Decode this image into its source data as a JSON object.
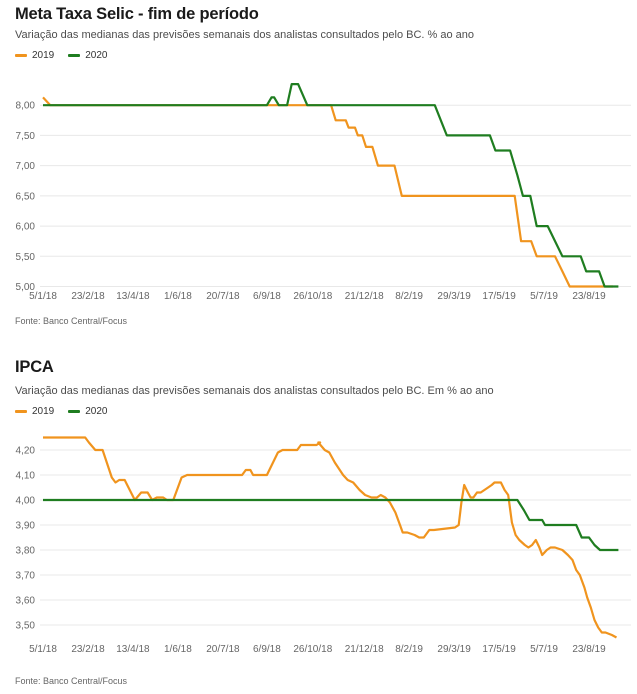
{
  "style": {
    "background": "#ffffff",
    "grid_color": "#e8e8e8",
    "axis_label_color": "#666666",
    "title_color": "#1a1a1a",
    "subtitle_color": "#4d4d4d",
    "source_color": "#666666",
    "orange_2019": "#f0941e",
    "green_2020": "#1f7d20"
  },
  "charts": [
    {
      "subtitle": "Variação das medianas das previsões semanais dos analistas consultados pelo BC. % ao ano",
      "source": "Fonte: Banco Central/Focus",
      "chart_data": {
        "type": "line",
        "title": "Meta Taxa Selic - fim de período",
        "ylabel": "% ao ano",
        "x_unit": "days since 5/1/18 (weekly survey)",
        "xlim": [
          0,
          640
        ],
        "ylim": [
          5.0,
          8.5
        ],
        "grid": true,
        "legend_position": "top-left",
        "x_ticks": [
          {
            "x": 0,
            "label": "5/1/18"
          },
          {
            "x": 49,
            "label": "23/2/18"
          },
          {
            "x": 98,
            "label": "13/4/18"
          },
          {
            "x": 147,
            "label": "1/6/18"
          },
          {
            "x": 196,
            "label": "20/7/18"
          },
          {
            "x": 244,
            "label": "6/9/18"
          },
          {
            "x": 294,
            "label": "26/10/18"
          },
          {
            "x": 350,
            "label": "21/12/18"
          },
          {
            "x": 399,
            "label": "8/2/19"
          },
          {
            "x": 448,
            "label": "29/3/19"
          },
          {
            "x": 497,
            "label": "17/5/19"
          },
          {
            "x": 546,
            "label": "5/7/19"
          },
          {
            "x": 595,
            "label": "23/8/19"
          }
        ],
        "y_ticks": [
          {
            "v": 8.0,
            "label": "8,00"
          },
          {
            "v": 7.5,
            "label": "7,50"
          },
          {
            "v": 7.0,
            "label": "7,00"
          },
          {
            "v": 6.5,
            "label": "6,50"
          },
          {
            "v": 6.0,
            "label": "6,00"
          },
          {
            "v": 5.5,
            "label": "5,50"
          },
          {
            "v": 5.0,
            "label": "5,00"
          }
        ],
        "series": [
          {
            "name": "2019",
            "color": "#f0941e",
            "points": [
              [
                0,
                8.13
              ],
              [
                8,
                8.0
              ],
              [
                314,
                8.0
              ],
              [
                319,
                7.75
              ],
              [
                330,
                7.75
              ],
              [
                333,
                7.63
              ],
              [
                340,
                7.63
              ],
              [
                343,
                7.5
              ],
              [
                348,
                7.5
              ],
              [
                352,
                7.31
              ],
              [
                359,
                7.31
              ],
              [
                365,
                7.0
              ],
              [
                383,
                7.0
              ],
              [
                391,
                6.5
              ],
              [
                514,
                6.5
              ],
              [
                521,
                5.75
              ],
              [
                532,
                5.75
              ],
              [
                538,
                5.5
              ],
              [
                558,
                5.5
              ],
              [
                566,
                5.25
              ],
              [
                574,
                5.0
              ],
              [
                621,
                5.0
              ]
            ]
          },
          {
            "name": "2020",
            "color": "#1f7d20",
            "points": [
              [
                0,
                8.0
              ],
              [
                244,
                8.0
              ],
              [
                249,
                8.13
              ],
              [
                252,
                8.13
              ],
              [
                257,
                8.0
              ],
              [
                266,
                8.0
              ],
              [
                271,
                8.35
              ],
              [
                278,
                8.35
              ],
              [
                288,
                8.0
              ],
              [
                427,
                8.0
              ],
              [
                440,
                7.5
              ],
              [
                487,
                7.5
              ],
              [
                493,
                7.25
              ],
              [
                509,
                7.25
              ],
              [
                517,
                6.84
              ],
              [
                523,
                6.5
              ],
              [
                531,
                6.5
              ],
              [
                538,
                6.0
              ],
              [
                550,
                6.0
              ],
              [
                566,
                5.5
              ],
              [
                586,
                5.5
              ],
              [
                592,
                5.25
              ],
              [
                606,
                5.25
              ],
              [
                612,
                5.0
              ],
              [
                627,
                5.0
              ]
            ]
          }
        ]
      }
    },
    {
      "subtitle": "Variação das medianas das previsões semanais dos analistas consultados pelo BC. Em % ao ano",
      "source": "Fonte: Banco Central/Focus",
      "chart_data": {
        "type": "line",
        "title": "IPCA",
        "ylabel": "% ao ano",
        "x_unit": "days since 5/1/18 (weekly survey)",
        "xlim": [
          0,
          640
        ],
        "ylim": [
          3.44,
          4.26
        ],
        "grid": true,
        "legend_position": "top-left",
        "x_ticks": [
          {
            "x": 0,
            "label": "5/1/18"
          },
          {
            "x": 49,
            "label": "23/2/18"
          },
          {
            "x": 98,
            "label": "13/4/18"
          },
          {
            "x": 147,
            "label": "1/6/18"
          },
          {
            "x": 196,
            "label": "20/7/18"
          },
          {
            "x": 244,
            "label": "6/9/18"
          },
          {
            "x": 294,
            "label": "26/10/18"
          },
          {
            "x": 350,
            "label": "21/12/18"
          },
          {
            "x": 399,
            "label": "8/2/19"
          },
          {
            "x": 448,
            "label": "29/3/19"
          },
          {
            "x": 497,
            "label": "17/5/19"
          },
          {
            "x": 546,
            "label": "5/7/19"
          },
          {
            "x": 595,
            "label": "23/8/19"
          }
        ],
        "y_ticks": [
          {
            "v": 4.2,
            "label": "4,20"
          },
          {
            "v": 4.1,
            "label": "4,10"
          },
          {
            "v": 4.0,
            "label": "4,00"
          },
          {
            "v": 3.9,
            "label": "3,90"
          },
          {
            "v": 3.8,
            "label": "3,80"
          },
          {
            "v": 3.7,
            "label": "3,70"
          },
          {
            "v": 3.6,
            "label": "3,60"
          },
          {
            "v": 3.5,
            "label": "3,50"
          }
        ],
        "series": [
          {
            "name": "2019",
            "color": "#f0941e",
            "points": [
              [
                0,
                4.25
              ],
              [
                46,
                4.25
              ],
              [
                50,
                4.23
              ],
              [
                57,
                4.2
              ],
              [
                65,
                4.2
              ],
              [
                75,
                4.09
              ],
              [
                79,
                4.07
              ],
              [
                83,
                4.08
              ],
              [
                89,
                4.08
              ],
              [
                100,
                4.0
              ],
              [
                107,
                4.03
              ],
              [
                114,
                4.03
              ],
              [
                119,
                4.0
              ],
              [
                124,
                4.01
              ],
              [
                131,
                4.01
              ],
              [
                135,
                4.0
              ],
              [
                142,
                4.0
              ],
              [
                151,
                4.09
              ],
              [
                157,
                4.1
              ],
              [
                217,
                4.1
              ],
              [
                221,
                4.12
              ],
              [
                226,
                4.12
              ],
              [
                229,
                4.1
              ],
              [
                244,
                4.1
              ],
              [
                256,
                4.19
              ],
              [
                261,
                4.2
              ],
              [
                277,
                4.2
              ],
              [
                281,
                4.22
              ],
              [
                298,
                4.22
              ],
              [
                302,
                4.23
              ],
              [
                300,
                4.23
              ],
              [
                307,
                4.2
              ],
              [
                312,
                4.19
              ],
              [
                318,
                4.15
              ],
              [
                327,
                4.1
              ],
              [
                332,
                4.08
              ],
              [
                338,
                4.07
              ],
              [
                345,
                4.04
              ],
              [
                351,
                4.02
              ],
              [
                358,
                4.01
              ],
              [
                364,
                4.01
              ],
              [
                368,
                4.02
              ],
              [
                373,
                4.01
              ],
              [
                378,
                3.99
              ],
              [
                384,
                3.95
              ],
              [
                389,
                3.9
              ],
              [
                392,
                3.87
              ],
              [
                397,
                3.87
              ],
              [
                405,
                3.86
              ],
              [
                410,
                3.85
              ],
              [
                415,
                3.85
              ],
              [
                421,
                3.88
              ],
              [
                426,
                3.88
              ],
              [
                449,
                3.89
              ],
              [
                453,
                3.9
              ],
              [
                456,
                3.99
              ],
              [
                459,
                4.06
              ],
              [
                463,
                4.03
              ],
              [
                466,
                4.01
              ],
              [
                469,
                4.01
              ],
              [
                473,
                4.03
              ],
              [
                477,
                4.03
              ],
              [
                481,
                4.04
              ],
              [
                485,
                4.05
              ],
              [
                489,
                4.06
              ],
              [
                492,
                4.07
              ],
              [
                499,
                4.07
              ],
              [
                503,
                4.04
              ],
              [
                507,
                4.02
              ],
              [
                511,
                3.91
              ],
              [
                515,
                3.86
              ],
              [
                519,
                3.84
              ],
              [
                525,
                3.82
              ],
              [
                529,
                3.81
              ],
              [
                533,
                3.82
              ],
              [
                537,
                3.84
              ],
              [
                541,
                3.81
              ],
              [
                544,
                3.78
              ],
              [
                549,
                3.8
              ],
              [
                553,
                3.81
              ],
              [
                558,
                3.81
              ],
              [
                566,
                3.8
              ],
              [
                572,
                3.78
              ],
              [
                577,
                3.76
              ],
              [
                581,
                3.72
              ],
              [
                585,
                3.7
              ],
              [
                590,
                3.65
              ],
              [
                593,
                3.61
              ],
              [
                597,
                3.57
              ],
              [
                601,
                3.52
              ],
              [
                605,
                3.49
              ],
              [
                609,
                3.47
              ],
              [
                613,
                3.47
              ],
              [
                620,
                3.46
              ],
              [
                625,
                3.45
              ]
            ]
          },
          {
            "name": "2020",
            "color": "#1f7d20",
            "points": [
              [
                0,
                4.0
              ],
              [
                517,
                4.0
              ],
              [
                524,
                3.96
              ],
              [
                530,
                3.92
              ],
              [
                544,
                3.92
              ],
              [
                547,
                3.9
              ],
              [
                581,
                3.9
              ],
              [
                587,
                3.85
              ],
              [
                595,
                3.85
              ],
              [
                601,
                3.82
              ],
              [
                607,
                3.8
              ],
              [
                627,
                3.8
              ]
            ]
          }
        ]
      }
    }
  ]
}
